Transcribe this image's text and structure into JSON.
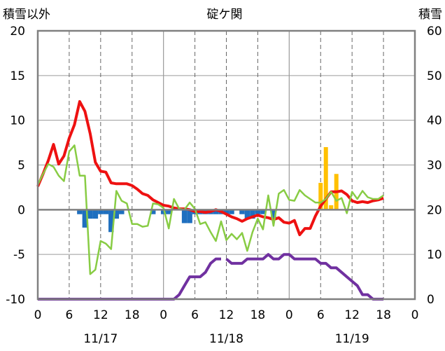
{
  "chart_data": {
    "type": "line",
    "title": "碇ケ関",
    "left_axis_label": "積雪以外",
    "right_axis_label": "積雪",
    "left_ylim": [
      -10,
      20
    ],
    "left_yticks": [
      "20",
      "15",
      "10",
      "5",
      "0",
      "-5",
      "-10"
    ],
    "right_ylim": [
      0,
      60
    ],
    "right_yticks": [
      "60",
      "50",
      "40",
      "30",
      "20",
      "10",
      "0"
    ],
    "x_hours": [
      0,
      72
    ],
    "xticks": [
      "0",
      "6",
      "12",
      "18",
      "0",
      "6",
      "12",
      "18",
      "0",
      "6",
      "12",
      "18",
      "0"
    ],
    "dates": [
      "11/17",
      "11/18",
      "11/19"
    ],
    "grid": true,
    "series": [
      {
        "color": "#ee1111",
        "axis": "left",
        "points": [
          [
            0,
            2.6
          ],
          [
            1,
            4
          ],
          [
            2,
            5.5
          ],
          [
            3,
            7.3
          ],
          [
            4,
            5.1
          ],
          [
            5,
            6
          ],
          [
            6,
            8
          ],
          [
            7,
            9.5
          ],
          [
            8,
            12.1
          ],
          [
            9,
            11
          ],
          [
            10,
            8.5
          ],
          [
            11,
            5.3
          ],
          [
            12,
            4.3
          ],
          [
            13,
            4.2
          ],
          [
            14,
            3
          ],
          [
            15,
            2.9
          ],
          [
            16,
            2.9
          ],
          [
            17,
            2.9
          ],
          [
            18,
            2.7
          ],
          [
            19,
            2.3
          ],
          [
            20,
            1.8
          ],
          [
            21,
            1.6
          ],
          [
            22,
            1.1
          ],
          [
            23,
            0.8
          ],
          [
            24,
            0.5
          ],
          [
            25,
            0.4
          ],
          [
            26,
            0.2
          ],
          [
            27,
            0.1
          ],
          [
            28,
            0.1
          ],
          [
            29,
            0
          ],
          [
            30,
            -0.2
          ],
          [
            31,
            -0.2
          ],
          [
            32,
            -0.3
          ],
          [
            33,
            -0.2
          ],
          [
            34,
            0
          ],
          [
            35,
            -0.2
          ],
          [
            36,
            -0.5
          ],
          [
            37,
            -0.8
          ],
          [
            38,
            -1
          ],
          [
            39,
            -1.3
          ],
          [
            40,
            -1
          ],
          [
            41,
            -0.8
          ],
          [
            42,
            -0.6
          ],
          [
            43,
            -0.8
          ],
          [
            44,
            -0.9
          ],
          [
            45,
            -1.1
          ],
          [
            46,
            -0.9
          ],
          [
            47,
            -1.4
          ],
          [
            48,
            -1.5
          ],
          [
            49,
            -1.2
          ],
          [
            50,
            -2.8
          ],
          [
            51,
            -2.1
          ],
          [
            52,
            -2.1
          ],
          [
            53,
            -0.7
          ],
          [
            54,
            0.4
          ],
          [
            55,
            1.2
          ],
          [
            56,
            2
          ],
          [
            57,
            2
          ],
          [
            58,
            2.1
          ],
          [
            59,
            1.7
          ],
          [
            60,
            1
          ],
          [
            61,
            0.8
          ],
          [
            62,
            0.9
          ],
          [
            63,
            0.8
          ],
          [
            64,
            1
          ],
          [
            65,
            1.1
          ],
          [
            66,
            1.3
          ]
        ]
      },
      {
        "color": "#88cc44",
        "axis": "left",
        "points": [
          [
            0,
            2.8
          ],
          [
            1,
            4
          ],
          [
            2,
            5.1
          ],
          [
            3,
            4.8
          ],
          [
            4,
            3.8
          ],
          [
            5,
            3.2
          ],
          [
            6,
            6.5
          ],
          [
            7,
            7.2
          ],
          [
            8,
            3.8
          ],
          [
            9,
            3.8
          ],
          [
            10,
            -7.2
          ],
          [
            11,
            -6.7
          ],
          [
            12,
            -3.5
          ],
          [
            13,
            -3.8
          ],
          [
            14,
            -4.4
          ],
          [
            15,
            2.1
          ],
          [
            16,
            1
          ],
          [
            17,
            0.7
          ],
          [
            18,
            -1.6
          ],
          [
            19,
            -1.6
          ],
          [
            20,
            -1.9
          ],
          [
            21,
            -1.8
          ],
          [
            22,
            0.7
          ],
          [
            23,
            0.6
          ],
          [
            24,
            0.2
          ],
          [
            25,
            -2.1
          ],
          [
            26,
            1.2
          ],
          [
            27,
            0.1
          ],
          [
            28,
            0
          ],
          [
            29,
            0.8
          ],
          [
            30,
            0.1
          ],
          [
            31,
            -1.6
          ],
          [
            32,
            -1.4
          ],
          [
            33,
            -2.5
          ],
          [
            34,
            -3.5
          ],
          [
            35,
            -1.3
          ],
          [
            36,
            -3.4
          ],
          [
            37,
            -2.7
          ],
          [
            38,
            -3.3
          ],
          [
            39,
            -2.6
          ],
          [
            40,
            -4.6
          ],
          [
            41,
            -2.5
          ],
          [
            42,
            -1
          ],
          [
            43,
            -2.2
          ],
          [
            44,
            1.6
          ],
          [
            45,
            -1.8
          ],
          [
            46,
            1.8
          ],
          [
            47,
            2.2
          ],
          [
            48,
            1.1
          ],
          [
            49,
            1
          ],
          [
            50,
            2.2
          ],
          [
            51,
            1.6
          ],
          [
            52,
            1.2
          ],
          [
            53,
            0.8
          ],
          [
            54,
            0.8
          ],
          [
            55,
            1.2
          ],
          [
            56,
            2
          ],
          [
            57,
            1
          ],
          [
            58,
            1.3
          ],
          [
            59,
            -0.4
          ],
          [
            60,
            2
          ],
          [
            61,
            1.2
          ],
          [
            62,
            2.1
          ],
          [
            63,
            1.4
          ],
          [
            64,
            1.2
          ],
          [
            65,
            1.2
          ],
          [
            66,
            1.6
          ]
        ]
      },
      {
        "color": "#7030a0",
        "axis": "right",
        "points": [
          [
            0,
            0
          ],
          [
            26,
            0
          ],
          [
            27,
            1
          ],
          [
            28,
            3
          ],
          [
            29,
            5
          ],
          [
            30,
            5
          ],
          [
            31,
            5
          ],
          [
            32,
            6
          ],
          [
            33,
            8
          ],
          [
            34,
            9
          ],
          [
            35,
            9
          ],
          [
            36,
            9
          ],
          [
            37,
            8
          ],
          [
            38,
            8
          ],
          [
            39,
            8
          ],
          [
            40,
            9
          ],
          [
            41,
            9
          ],
          [
            42,
            9
          ],
          [
            43,
            9
          ],
          [
            44,
            10
          ],
          [
            45,
            9
          ],
          [
            46,
            9
          ],
          [
            47,
            10
          ],
          [
            48,
            10
          ],
          [
            49,
            9
          ],
          [
            50,
            9
          ],
          [
            51,
            9
          ],
          [
            52,
            9
          ],
          [
            53,
            9
          ],
          [
            54,
            8
          ],
          [
            55,
            8
          ],
          [
            56,
            7
          ],
          [
            57,
            7
          ],
          [
            58,
            6
          ],
          [
            59,
            5
          ],
          [
            60,
            4
          ],
          [
            61,
            3
          ],
          [
            62,
            1
          ],
          [
            63,
            1
          ],
          [
            64,
            0
          ],
          [
            65,
            0
          ],
          [
            66,
            0
          ]
        ],
        "gaps": [
          [
            35,
            36
          ],
          [
            51,
            53
          ]
        ]
      }
    ],
    "bars_blue": {
      "color": "#1f6fbf",
      "axis": "left",
      "values": [
        [
          8,
          -0.5
        ],
        [
          9,
          -2
        ],
        [
          10,
          -1
        ],
        [
          11,
          -1
        ],
        [
          12,
          -0.5
        ],
        [
          13,
          -0.5
        ],
        [
          14,
          -2.5
        ],
        [
          15,
          -1
        ],
        [
          16,
          -0.5
        ],
        [
          22,
          -0.5
        ],
        [
          24,
          -0.5
        ],
        [
          25,
          -0.5
        ],
        [
          28,
          -1.5
        ],
        [
          29,
          -1.5
        ],
        [
          30,
          -0.5
        ],
        [
          31,
          -0.5
        ],
        [
          32,
          -0.5
        ],
        [
          33,
          -0.5
        ],
        [
          34,
          -0.5
        ],
        [
          35,
          -0.5
        ],
        [
          36,
          -0.5
        ],
        [
          37,
          -0.5
        ],
        [
          39,
          -0.5
        ],
        [
          40,
          -1
        ],
        [
          41,
          -1
        ],
        [
          42,
          -0.5
        ],
        [
          43,
          -0.5
        ],
        [
          45,
          -1
        ]
      ]
    },
    "bars_yellow": {
      "color": "#ffc000",
      "axis": "left",
      "values": [
        [
          54,
          3
        ],
        [
          55,
          7
        ],
        [
          56,
          0.5
        ],
        [
          57,
          4
        ]
      ]
    }
  }
}
